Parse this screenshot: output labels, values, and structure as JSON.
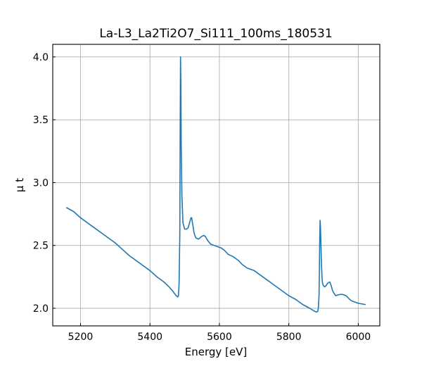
{
  "chart_data": {
    "type": "line",
    "title": "La-L3_La2Ti2O7_Si111_100ms_180531",
    "xlabel": "Energy [eV]",
    "ylabel": "μ t",
    "xlim": [
      5120,
      6062
    ],
    "ylim": [
      1.86,
      4.1
    ],
    "xticks": [
      5200,
      5400,
      5600,
      5800,
      6000
    ],
    "xtick_labels": [
      "5200",
      "5400",
      "5600",
      "5800",
      "6000"
    ],
    "yticks": [
      2.0,
      2.5,
      3.0,
      3.5,
      4.0
    ],
    "ytick_labels": [
      "2.0",
      "2.5",
      "3.0",
      "3.5",
      "4.0"
    ],
    "grid": true,
    "tick_direction": "in",
    "legend": "none",
    "series": [
      {
        "color": "#1f77b4",
        "x": [
          5160,
          5180,
          5200,
          5220,
          5240,
          5260,
          5280,
          5300,
          5320,
          5340,
          5360,
          5380,
          5400,
          5420,
          5440,
          5455,
          5465,
          5470,
          5474,
          5476,
          5478,
          5480,
          5482,
          5484,
          5486,
          5487,
          5488,
          5489,
          5490,
          5492,
          5495,
          5500,
          5505,
          5510,
          5515,
          5518,
          5520,
          5523,
          5527,
          5532,
          5540,
          5548,
          5555,
          5560,
          5566,
          5575,
          5585,
          5595,
          5605,
          5615,
          5625,
          5640,
          5655,
          5665,
          5680,
          5700,
          5720,
          5740,
          5760,
          5780,
          5800,
          5820,
          5840,
          5860,
          5875,
          5880,
          5883,
          5885,
          5887,
          5888,
          5889,
          5890,
          5891,
          5892,
          5894,
          5896,
          5898,
          5900,
          5903,
          5907,
          5912,
          5918,
          5922,
          5926,
          5930,
          5935,
          5940,
          5947,
          5955,
          5965,
          5972,
          5980,
          5990,
          6000,
          6010,
          6020
        ],
        "y": [
          2.8,
          2.77,
          2.72,
          2.68,
          2.64,
          2.6,
          2.56,
          2.52,
          2.47,
          2.42,
          2.38,
          2.34,
          2.3,
          2.25,
          2.21,
          2.17,
          2.14,
          2.12,
          2.105,
          2.1,
          2.095,
          2.09,
          2.1,
          2.2,
          2.6,
          3.4,
          4.0,
          3.8,
          3.3,
          2.9,
          2.68,
          2.63,
          2.63,
          2.64,
          2.69,
          2.72,
          2.72,
          2.67,
          2.6,
          2.56,
          2.55,
          2.57,
          2.58,
          2.57,
          2.54,
          2.51,
          2.5,
          2.49,
          2.48,
          2.46,
          2.43,
          2.41,
          2.38,
          2.35,
          2.32,
          2.3,
          2.26,
          2.22,
          2.18,
          2.14,
          2.1,
          2.07,
          2.03,
          2.0,
          1.975,
          1.97,
          1.975,
          2.0,
          2.1,
          2.3,
          2.55,
          2.7,
          2.65,
          2.55,
          2.35,
          2.22,
          2.19,
          2.18,
          2.17,
          2.18,
          2.2,
          2.21,
          2.18,
          2.14,
          2.12,
          2.1,
          2.105,
          2.11,
          2.11,
          2.1,
          2.08,
          2.06,
          2.05,
          2.04,
          2.035,
          2.03
        ]
      }
    ]
  }
}
